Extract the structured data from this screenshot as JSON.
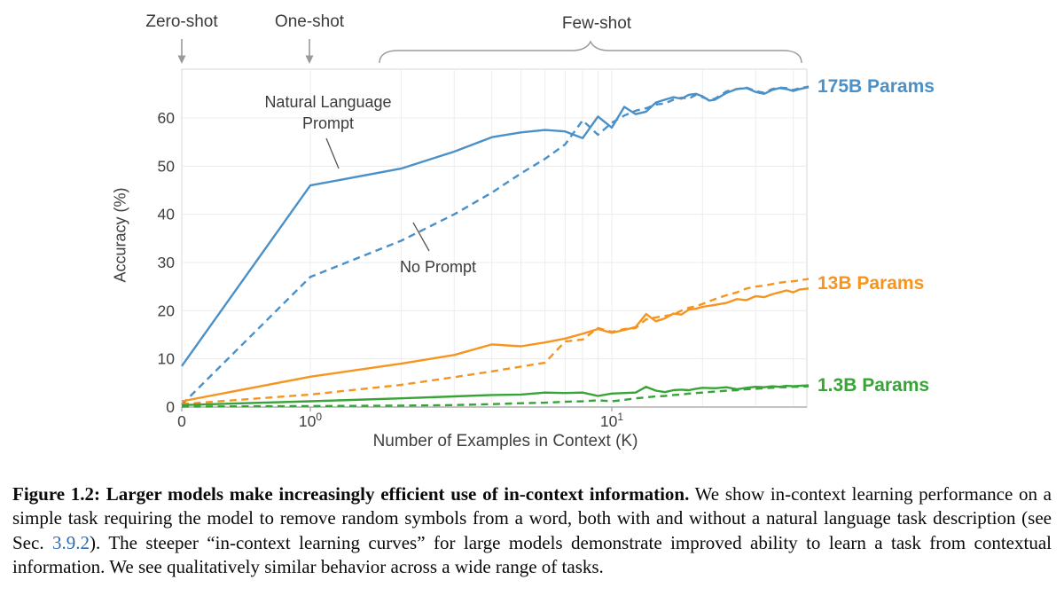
{
  "figure": {
    "stage_labels": {
      "zero_shot": "Zero-shot",
      "one_shot": "One-shot",
      "few_shot": "Few-shot"
    },
    "annotations": {
      "natural_language_prompt": "Natural Language Prompt",
      "no_prompt": "No Prompt"
    }
  },
  "colors": {
    "grid": "#ececec",
    "spine": "#d7d7d7",
    "axis": "#a0a0a0",
    "decor": "#9a9a9a",
    "pointer": "#555555",
    "blue": "#4a90c9",
    "orange": "#f7941e",
    "green": "#38a438",
    "link": "#2d6bb0"
  },
  "chart_data": {
    "type": "line",
    "title": "",
    "x_scale": "symlog (linear from 0 to 1, log10 beyond 1)",
    "xlim": [
      0,
      45
    ],
    "ylim": [
      0,
      70
    ],
    "grid": true,
    "x_gridlines": [
      1,
      2,
      3,
      4,
      5,
      6,
      7,
      8,
      9,
      10,
      20,
      30,
      40
    ],
    "x_axis": {
      "label": "Number of Examples in Context  (K)",
      "tick_positions": [
        0,
        1,
        10
      ],
      "ticks": [
        {
          "base": "0",
          "exp": ""
        },
        {
          "base": "10",
          "exp": "0"
        },
        {
          "base": "10",
          "exp": "1"
        }
      ]
    },
    "y_axis": {
      "label": "Accuracy (%)",
      "ticks": [
        0,
        10,
        20,
        30,
        40,
        50,
        60
      ]
    },
    "legend": [
      {
        "label": "175B Params",
        "color": "#4a90c9"
      },
      {
        "label": "13B Params",
        "color": "#f7941e"
      },
      {
        "label": "1.3B Params",
        "color": "#38a438"
      }
    ],
    "series": [
      {
        "name": "175B natural language prompt",
        "color": "#4a90c9",
        "style": "solid",
        "points": [
          [
            0,
            8.5
          ],
          [
            1,
            46
          ],
          [
            2,
            49.5
          ],
          [
            3,
            53
          ],
          [
            4,
            56
          ],
          [
            5,
            57
          ],
          [
            6,
            57.5
          ],
          [
            7,
            57.2
          ],
          [
            8,
            55.8
          ],
          [
            9,
            60.3
          ],
          [
            10,
            58
          ],
          [
            11,
            62.3
          ],
          [
            12,
            60.8
          ],
          [
            13,
            61.3
          ],
          [
            14,
            63.2
          ],
          [
            15,
            63.8
          ],
          [
            16,
            64.3
          ],
          [
            17,
            64
          ],
          [
            18,
            64.8
          ],
          [
            19,
            65
          ],
          [
            20,
            64.5
          ],
          [
            21,
            63.6
          ],
          [
            22,
            63.8
          ],
          [
            24,
            65.2
          ],
          [
            26,
            66
          ],
          [
            28,
            66.2
          ],
          [
            30,
            65.4
          ],
          [
            32,
            65
          ],
          [
            34,
            65.8
          ],
          [
            36,
            66.2
          ],
          [
            38,
            66
          ],
          [
            40,
            65.6
          ],
          [
            42,
            66
          ],
          [
            45,
            66.4
          ]
        ]
      },
      {
        "name": "175B no prompt",
        "color": "#4a90c9",
        "style": "dashed",
        "points": [
          [
            0,
            0.5
          ],
          [
            1,
            27
          ],
          [
            2,
            34.5
          ],
          [
            3,
            40
          ],
          [
            4,
            44.5
          ],
          [
            5,
            48.5
          ],
          [
            6,
            51.5
          ],
          [
            7,
            54.5
          ],
          [
            8,
            59.5
          ],
          [
            9,
            56.5
          ],
          [
            10,
            59
          ],
          [
            11,
            60.5
          ],
          [
            12,
            61.5
          ],
          [
            13,
            62
          ],
          [
            14,
            62.8
          ],
          [
            15,
            63
          ],
          [
            16,
            63.8
          ],
          [
            17,
            64.2
          ],
          [
            18,
            64
          ],
          [
            19,
            64.8
          ],
          [
            20,
            64.3
          ],
          [
            21,
            63.8
          ],
          [
            22,
            64
          ],
          [
            24,
            65.5
          ],
          [
            26,
            66
          ],
          [
            28,
            66.3
          ],
          [
            30,
            65.6
          ],
          [
            32,
            65.2
          ],
          [
            34,
            66
          ],
          [
            36,
            66.3
          ],
          [
            38,
            66.2
          ],
          [
            40,
            65.8
          ],
          [
            42,
            66.2
          ],
          [
            45,
            66.5
          ]
        ]
      },
      {
        "name": "13B natural language prompt",
        "color": "#f7941e",
        "style": "solid",
        "points": [
          [
            0,
            1.2
          ],
          [
            1,
            6.3
          ],
          [
            2,
            9
          ],
          [
            3,
            10.8
          ],
          [
            4,
            13
          ],
          [
            5,
            12.6
          ],
          [
            6,
            13.4
          ],
          [
            7,
            14.2
          ],
          [
            8,
            15.2
          ],
          [
            9,
            16.2
          ],
          [
            10,
            15.4
          ],
          [
            11,
            16
          ],
          [
            12,
            16.6
          ],
          [
            13,
            19.3
          ],
          [
            14,
            17.8
          ],
          [
            15,
            18.4
          ],
          [
            16,
            19.4
          ],
          [
            17,
            19.2
          ],
          [
            18,
            20.2
          ],
          [
            19,
            20.4
          ],
          [
            20,
            20.8
          ],
          [
            22,
            21.2
          ],
          [
            24,
            21.6
          ],
          [
            26,
            22.4
          ],
          [
            28,
            22.2
          ],
          [
            30,
            23
          ],
          [
            32,
            22.8
          ],
          [
            34,
            23.4
          ],
          [
            36,
            23.8
          ],
          [
            38,
            24.2
          ],
          [
            40,
            23.8
          ],
          [
            42,
            24.4
          ],
          [
            45,
            24.6
          ]
        ]
      },
      {
        "name": "13B no prompt",
        "color": "#f7941e",
        "style": "dashed",
        "points": [
          [
            0,
            0.6
          ],
          [
            1,
            2.6
          ],
          [
            2,
            4.6
          ],
          [
            3,
            6.2
          ],
          [
            4,
            7.4
          ],
          [
            5,
            8.4
          ],
          [
            6,
            9.2
          ],
          [
            7,
            13.6
          ],
          [
            8,
            14
          ],
          [
            9,
            16.4
          ],
          [
            10,
            15.6
          ],
          [
            11,
            16.2
          ],
          [
            12,
            16.4
          ],
          [
            13,
            18.2
          ],
          [
            14,
            18.6
          ],
          [
            15,
            18.9
          ],
          [
            16,
            19.2
          ],
          [
            17,
            20
          ],
          [
            18,
            20.6
          ],
          [
            19,
            20.9
          ],
          [
            20,
            21.4
          ],
          [
            22,
            22.4
          ],
          [
            24,
            23.2
          ],
          [
            26,
            23.8
          ],
          [
            28,
            24.6
          ],
          [
            30,
            25
          ],
          [
            32,
            25.2
          ],
          [
            34,
            25.5
          ],
          [
            36,
            25.8
          ],
          [
            38,
            26
          ],
          [
            40,
            26.1
          ],
          [
            42,
            26.3
          ],
          [
            45,
            26.6
          ]
        ]
      },
      {
        "name": "1.3B natural language prompt",
        "color": "#38a438",
        "style": "solid",
        "points": [
          [
            0,
            0.4
          ],
          [
            1,
            1.2
          ],
          [
            2,
            1.8
          ],
          [
            3,
            2.2
          ],
          [
            4,
            2.5
          ],
          [
            5,
            2.6
          ],
          [
            6,
            3
          ],
          [
            7,
            2.9
          ],
          [
            8,
            3
          ],
          [
            9,
            2.3
          ],
          [
            10,
            2.8
          ],
          [
            11,
            2.9
          ],
          [
            12,
            3
          ],
          [
            13,
            4.2
          ],
          [
            14,
            3.4
          ],
          [
            15,
            3.1
          ],
          [
            16,
            3.5
          ],
          [
            17,
            3.6
          ],
          [
            18,
            3.5
          ],
          [
            19,
            3.8
          ],
          [
            20,
            4
          ],
          [
            22,
            3.9
          ],
          [
            24,
            4.1
          ],
          [
            26,
            3.7
          ],
          [
            28,
            4
          ],
          [
            30,
            4.2
          ],
          [
            32,
            4.1
          ],
          [
            34,
            4.3
          ],
          [
            36,
            4.2
          ],
          [
            38,
            4.4
          ],
          [
            40,
            4.3
          ],
          [
            42,
            4.4
          ],
          [
            45,
            4.5
          ]
        ]
      },
      {
        "name": "1.3B no prompt",
        "color": "#38a438",
        "style": "dashed",
        "points": [
          [
            0,
            0.1
          ],
          [
            1,
            0.2
          ],
          [
            2,
            0.3
          ],
          [
            3,
            0.4
          ],
          [
            4,
            0.6
          ],
          [
            5,
            0.8
          ],
          [
            6,
            0.9
          ],
          [
            7,
            1.1
          ],
          [
            8,
            1.2
          ],
          [
            9,
            1.4
          ],
          [
            10,
            1.2
          ],
          [
            11,
            1.5
          ],
          [
            12,
            1.8
          ],
          [
            13,
            2
          ],
          [
            14,
            2.2
          ],
          [
            15,
            2.3
          ],
          [
            16,
            2.5
          ],
          [
            17,
            2.6
          ],
          [
            18,
            2.8
          ],
          [
            19,
            2.9
          ],
          [
            20,
            3
          ],
          [
            22,
            3.2
          ],
          [
            24,
            3.4
          ],
          [
            26,
            3.5
          ],
          [
            28,
            3.7
          ],
          [
            30,
            3.8
          ],
          [
            32,
            3.9
          ],
          [
            34,
            4
          ],
          [
            36,
            4.1
          ],
          [
            38,
            4.1
          ],
          [
            40,
            4.2
          ],
          [
            42,
            4.2
          ],
          [
            45,
            4.3
          ]
        ]
      }
    ]
  },
  "caption": {
    "bold": "Figure 1.2: Larger models make increasingly efficient use of in-context information.",
    "text_before_link": "  We show in-context learning performance on a simple task requiring the model to remove random symbols from a word, both with and without a natural language task description (see Sec. ",
    "link_text": "3.9.2",
    "text_after_link": "). The steeper “in-context learning curves” for large models demonstrate improved ability to learn a task from contextual information. We see qualitatively similar behavior across a wide range of tasks."
  }
}
